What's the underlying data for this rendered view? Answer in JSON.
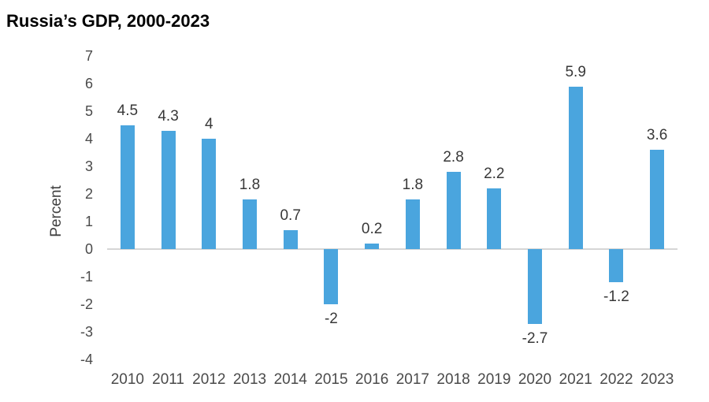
{
  "chart_data": {
    "type": "bar",
    "title": "Russia’s GDP, 2000-2023",
    "xlabel": "",
    "ylabel": "Percent",
    "categories": [
      "2010",
      "2011",
      "2012",
      "2013",
      "2014",
      "2015",
      "2016",
      "2017",
      "2018",
      "2019",
      "2020",
      "2021",
      "2022",
      "2023"
    ],
    "values": [
      4.5,
      4.3,
      4,
      1.8,
      0.7,
      -2,
      0.2,
      1.8,
      2.8,
      2.2,
      -2.7,
      5.9,
      -1.2,
      3.6
    ],
    "data_labels": [
      "4.5",
      "4.3",
      "4",
      "1.8",
      "0.7",
      "-2",
      "0.2",
      "1.8",
      "2.8",
      "2.2",
      "-2.7",
      "5.9",
      "-1.2",
      "3.6"
    ],
    "ylim": [
      -4,
      7
    ],
    "yticks": [
      7,
      6,
      5,
      4,
      3,
      2,
      1,
      0,
      -1,
      -2,
      -3,
      -4
    ],
    "grid": false,
    "legend": "none",
    "colors": {
      "bar": "#4aa5de",
      "zero_line": "#d6d6d6",
      "tick_labels": "#4a4a4a",
      "data_labels": "#383838",
      "title": "#000000",
      "background": "#ffffff"
    }
  }
}
